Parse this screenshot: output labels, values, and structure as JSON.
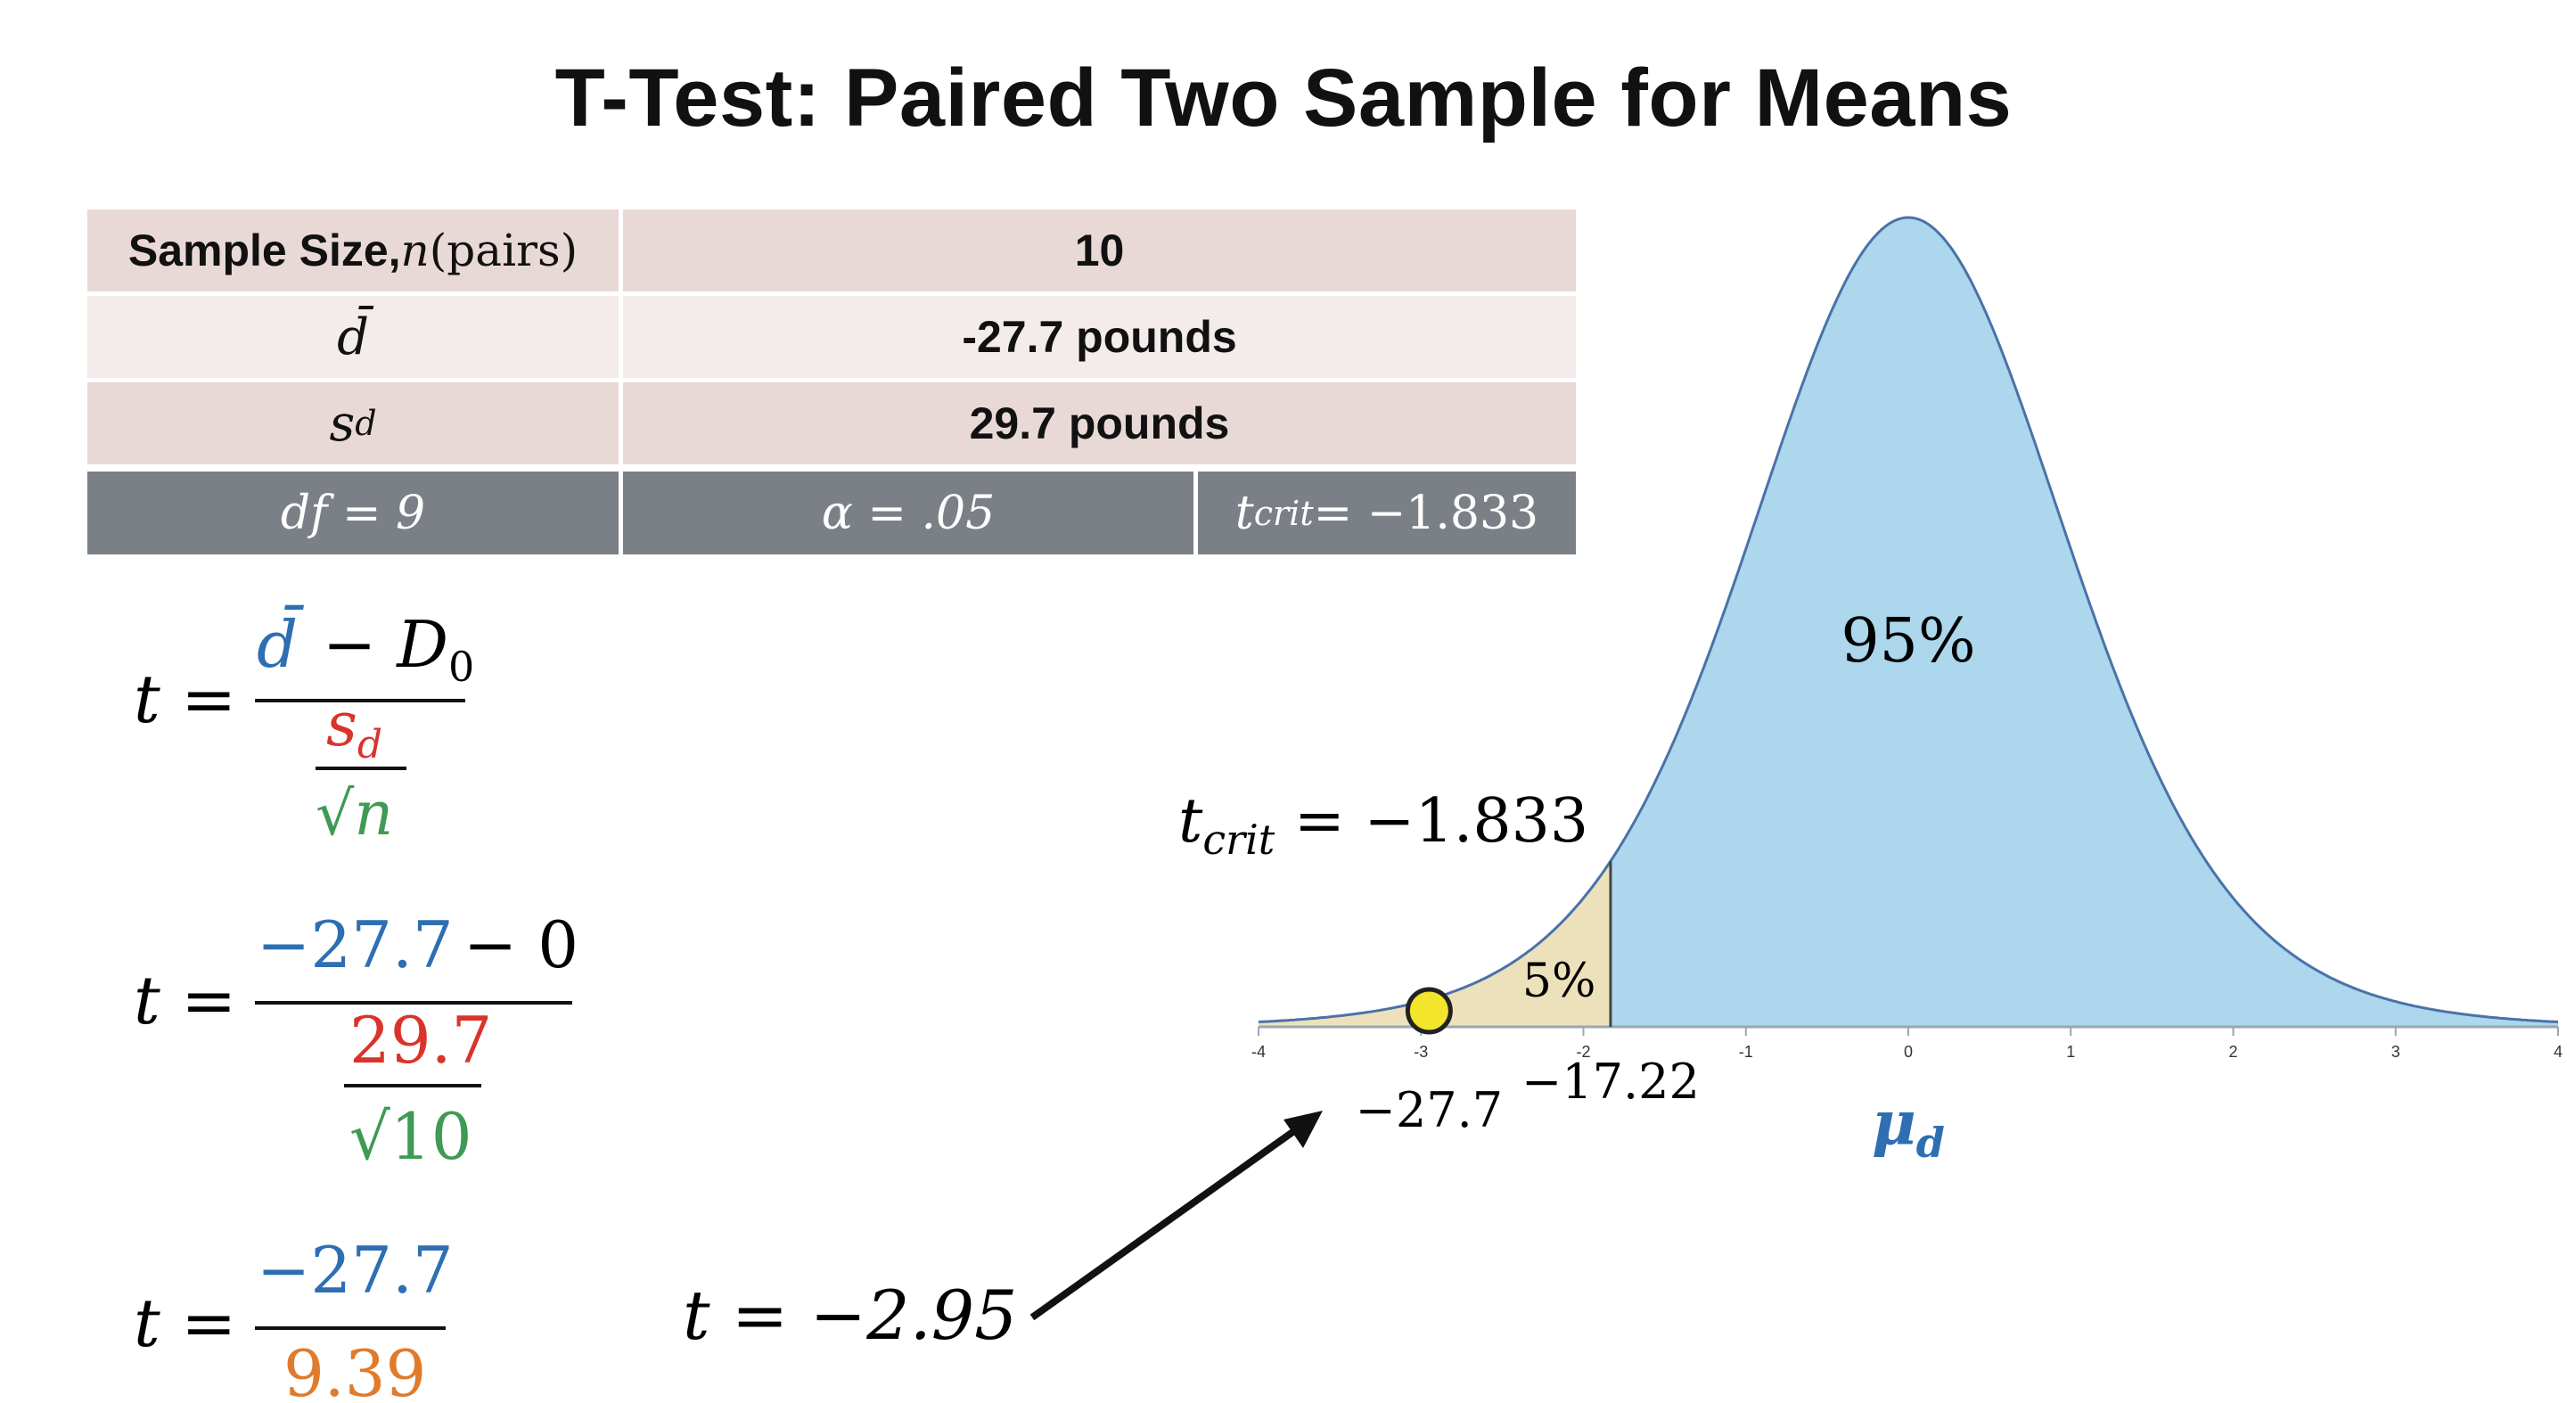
{
  "title": "T-Test: Paired Two Sample for Means",
  "table": {
    "row1_label": "Sample Size, ",
    "row1_label_var": "n",
    "row1_label_tail": " (pairs)",
    "row1_value": "10",
    "row2_label": "d̄",
    "row2_value": "-27.7 pounds",
    "row3_label_var": "s",
    "row3_label_sub": "d",
    "row3_value": "29.7 pounds",
    "df": "df = 9",
    "alpha": "α = .05",
    "tcrit_var": "t",
    "tcrit_sub": "crit",
    "tcrit_rest": " = −1.833"
  },
  "formulas": {
    "t_eq": "t =",
    "f1_num_d": "d̄",
    "f1_num_rest": "− D",
    "f1_num_sub": "0",
    "f1_den_s": "s",
    "f1_den_sub": "d",
    "f1_den_root": "√n",
    "f2_num_a": "−27.7",
    "f2_num_b": "− 0",
    "f2_den_top": "29.7",
    "f2_den_root": "√10",
    "f3_num": "−27.7",
    "f3_den": "9.39",
    "result": "t = −2.95"
  },
  "colors": {
    "blue": "#2e6fb3",
    "red": "#d9342b",
    "green": "#3f9a54",
    "orange": "#e07b2c",
    "curve_fill": "#acd7ec",
    "curve_line": "#4a72a8",
    "tail_fill": "#ede1bc",
    "dot": "#f3e42c"
  },
  "chart_data": {
    "type": "area",
    "distribution": "t",
    "df": 9,
    "xlim": [
      -4,
      4
    ],
    "x_ticks": [
      "-4",
      "-3",
      "-2",
      "-1",
      "0",
      "1",
      "2",
      "3",
      "4"
    ],
    "critical_t": -1.833,
    "test_statistic_t": -2.95,
    "center_label": "95%",
    "tail_label": "5%",
    "tcrit_label_var": "t",
    "tcrit_label_sub": "crit",
    "tcrit_label_rest": " = −1.833",
    "crit_value_label": "−17.22",
    "sample_value_label": "−27.7",
    "x_axis_label": "μ",
    "x_axis_label_sub": "d"
  }
}
